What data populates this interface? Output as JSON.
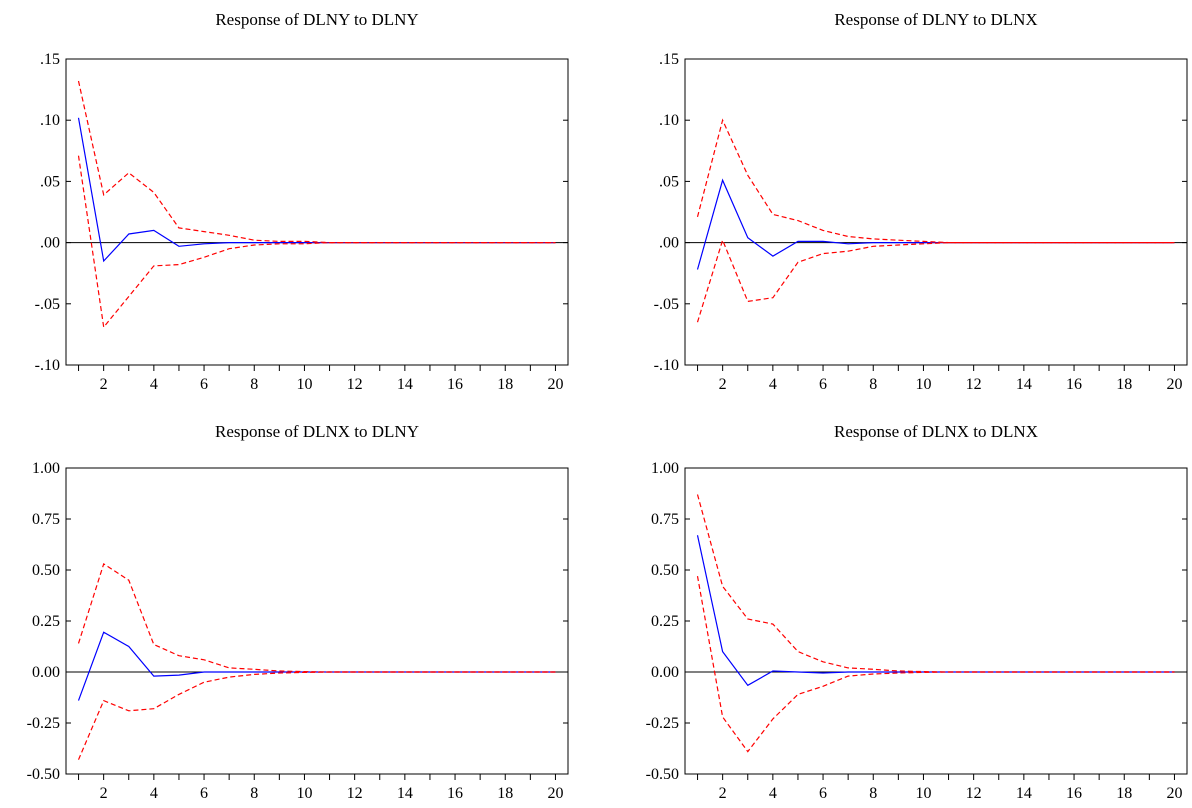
{
  "colors": {
    "impulse": "#0000ff",
    "band": "#ff0000",
    "zero_line": "#000000",
    "frame": "#000000"
  },
  "chart_data": [
    {
      "type": "line",
      "title": "Response of DLNY to DLNY",
      "xlabel": "",
      "ylabel": "",
      "x": [
        1,
        2,
        3,
        4,
        5,
        6,
        7,
        8,
        9,
        10,
        11,
        12,
        13,
        14,
        15,
        16,
        17,
        18,
        19,
        20
      ],
      "xticks": [
        2,
        4,
        6,
        8,
        10,
        12,
        14,
        16,
        18,
        20
      ],
      "xlim": [
        0.5,
        20.5
      ],
      "ylim": [
        -0.1,
        0.15
      ],
      "yticks": [
        -0.1,
        -0.05,
        0.0,
        0.05,
        0.1,
        0.15
      ],
      "ytick_labels": [
        "-.10",
        "-.05",
        ".00",
        ".05",
        ".10",
        ".15"
      ],
      "zero_line": true,
      "grid": false,
      "series": [
        {
          "role": "response",
          "style": "solid",
          "values": [
            0.102,
            -0.015,
            0.007,
            0.01,
            -0.003,
            -0.001,
            0.0,
            0.0,
            0.0,
            0.0,
            0.0,
            0.0,
            0.0,
            0.0,
            0.0,
            0.0,
            0.0,
            0.0,
            0.0,
            0.0
          ]
        },
        {
          "role": "upper",
          "style": "dashed",
          "values": [
            0.132,
            0.039,
            0.057,
            0.041,
            0.012,
            0.009,
            0.006,
            0.002,
            0.001,
            0.001,
            0.0,
            0.0,
            0.0,
            0.0,
            0.0,
            0.0,
            0.0,
            0.0,
            0.0,
            0.0
          ]
        },
        {
          "role": "lower",
          "style": "dashed",
          "values": [
            0.071,
            -0.069,
            -0.044,
            -0.019,
            -0.018,
            -0.012,
            -0.005,
            -0.002,
            -0.001,
            -0.001,
            0.0,
            0.0,
            0.0,
            0.0,
            0.0,
            0.0,
            0.0,
            0.0,
            0.0,
            0.0
          ]
        }
      ]
    },
    {
      "type": "line",
      "title": "Response of DLNY to DLNX",
      "xlabel": "",
      "ylabel": "",
      "x": [
        1,
        2,
        3,
        4,
        5,
        6,
        7,
        8,
        9,
        10,
        11,
        12,
        13,
        14,
        15,
        16,
        17,
        18,
        19,
        20
      ],
      "xticks": [
        2,
        4,
        6,
        8,
        10,
        12,
        14,
        16,
        18,
        20
      ],
      "xlim": [
        0.5,
        20.5
      ],
      "ylim": [
        -0.1,
        0.15
      ],
      "yticks": [
        -0.1,
        -0.05,
        0.0,
        0.05,
        0.1,
        0.15
      ],
      "ytick_labels": [
        "-.10",
        "-.05",
        ".00",
        ".05",
        ".10",
        ".15"
      ],
      "zero_line": true,
      "grid": false,
      "series": [
        {
          "role": "response",
          "style": "solid",
          "values": [
            -0.022,
            0.051,
            0.004,
            -0.011,
            0.001,
            0.001,
            -0.001,
            0.0,
            0.0,
            0.0,
            0.0,
            0.0,
            0.0,
            0.0,
            0.0,
            0.0,
            0.0,
            0.0,
            0.0,
            0.0
          ]
        },
        {
          "role": "upper",
          "style": "dashed",
          "values": [
            0.021,
            0.1,
            0.055,
            0.023,
            0.018,
            0.01,
            0.005,
            0.003,
            0.002,
            0.001,
            0.0,
            0.0,
            0.0,
            0.0,
            0.0,
            0.0,
            0.0,
            0.0,
            0.0,
            0.0
          ]
        },
        {
          "role": "lower",
          "style": "dashed",
          "values": [
            -0.065,
            0.002,
            -0.048,
            -0.045,
            -0.016,
            -0.009,
            -0.007,
            -0.003,
            -0.002,
            -0.001,
            0.0,
            0.0,
            0.0,
            0.0,
            0.0,
            0.0,
            0.0,
            0.0,
            0.0,
            0.0
          ]
        }
      ]
    },
    {
      "type": "line",
      "title": "Response of DLNX to DLNY",
      "xlabel": "",
      "ylabel": "",
      "x": [
        1,
        2,
        3,
        4,
        5,
        6,
        7,
        8,
        9,
        10,
        11,
        12,
        13,
        14,
        15,
        16,
        17,
        18,
        19,
        20
      ],
      "xticks": [
        2,
        4,
        6,
        8,
        10,
        12,
        14,
        16,
        18,
        20
      ],
      "xlim": [
        0.5,
        20.5
      ],
      "ylim": [
        -0.5,
        1.0
      ],
      "yticks": [
        -0.5,
        -0.25,
        0.0,
        0.25,
        0.5,
        0.75,
        1.0
      ],
      "ytick_labels": [
        "-0.50",
        "-0.25",
        "0.00",
        "0.25",
        "0.50",
        "0.75",
        "1.00"
      ],
      "zero_line": true,
      "grid": false,
      "series": [
        {
          "role": "response",
          "style": "solid",
          "values": [
            -0.14,
            0.195,
            0.125,
            -0.02,
            -0.015,
            0.0,
            0.0,
            0.0,
            0.0,
            0.0,
            0.0,
            0.0,
            0.0,
            0.0,
            0.0,
            0.0,
            0.0,
            0.0,
            0.0,
            0.0
          ]
        },
        {
          "role": "upper",
          "style": "dashed",
          "values": [
            0.14,
            0.53,
            0.45,
            0.135,
            0.08,
            0.06,
            0.02,
            0.013,
            0.005,
            0.002,
            0.0,
            0.0,
            0.0,
            0.0,
            0.0,
            0.0,
            0.0,
            0.0,
            0.0,
            0.0
          ]
        },
        {
          "role": "lower",
          "style": "dashed",
          "values": [
            -0.43,
            -0.14,
            -0.19,
            -0.18,
            -0.11,
            -0.05,
            -0.025,
            -0.012,
            -0.005,
            -0.002,
            0.0,
            0.0,
            0.0,
            0.0,
            0.0,
            0.0,
            0.0,
            0.0,
            0.0,
            0.0
          ]
        }
      ]
    },
    {
      "type": "line",
      "title": "Response of DLNX to DLNX",
      "xlabel": "",
      "ylabel": "",
      "x": [
        1,
        2,
        3,
        4,
        5,
        6,
        7,
        8,
        9,
        10,
        11,
        12,
        13,
        14,
        15,
        16,
        17,
        18,
        19,
        20
      ],
      "xticks": [
        2,
        4,
        6,
        8,
        10,
        12,
        14,
        16,
        18,
        20
      ],
      "xlim": [
        0.5,
        20.5
      ],
      "ylim": [
        -0.5,
        1.0
      ],
      "yticks": [
        -0.5,
        -0.25,
        0.0,
        0.25,
        0.5,
        0.75,
        1.0
      ],
      "ytick_labels": [
        "-0.50",
        "-0.25",
        "0.00",
        "0.25",
        "0.50",
        "0.75",
        "1.00"
      ],
      "zero_line": true,
      "grid": false,
      "series": [
        {
          "role": "response",
          "style": "solid",
          "values": [
            0.67,
            0.1,
            -0.065,
            0.005,
            0.0,
            -0.005,
            0.0,
            0.0,
            0.0,
            0.0,
            0.0,
            0.0,
            0.0,
            0.0,
            0.0,
            0.0,
            0.0,
            0.0,
            0.0,
            0.0
          ]
        },
        {
          "role": "upper",
          "style": "dashed",
          "values": [
            0.87,
            0.42,
            0.26,
            0.235,
            0.1,
            0.05,
            0.02,
            0.013,
            0.005,
            0.002,
            0.0,
            0.0,
            0.0,
            0.0,
            0.0,
            0.0,
            0.0,
            0.0,
            0.0,
            0.0
          ]
        },
        {
          "role": "lower",
          "style": "dashed",
          "values": [
            0.47,
            -0.22,
            -0.39,
            -0.23,
            -0.11,
            -0.07,
            -0.02,
            -0.01,
            -0.005,
            -0.002,
            0.0,
            0.0,
            0.0,
            0.0,
            0.0,
            0.0,
            0.0,
            0.0,
            0.0,
            0.0
          ]
        }
      ]
    }
  ]
}
